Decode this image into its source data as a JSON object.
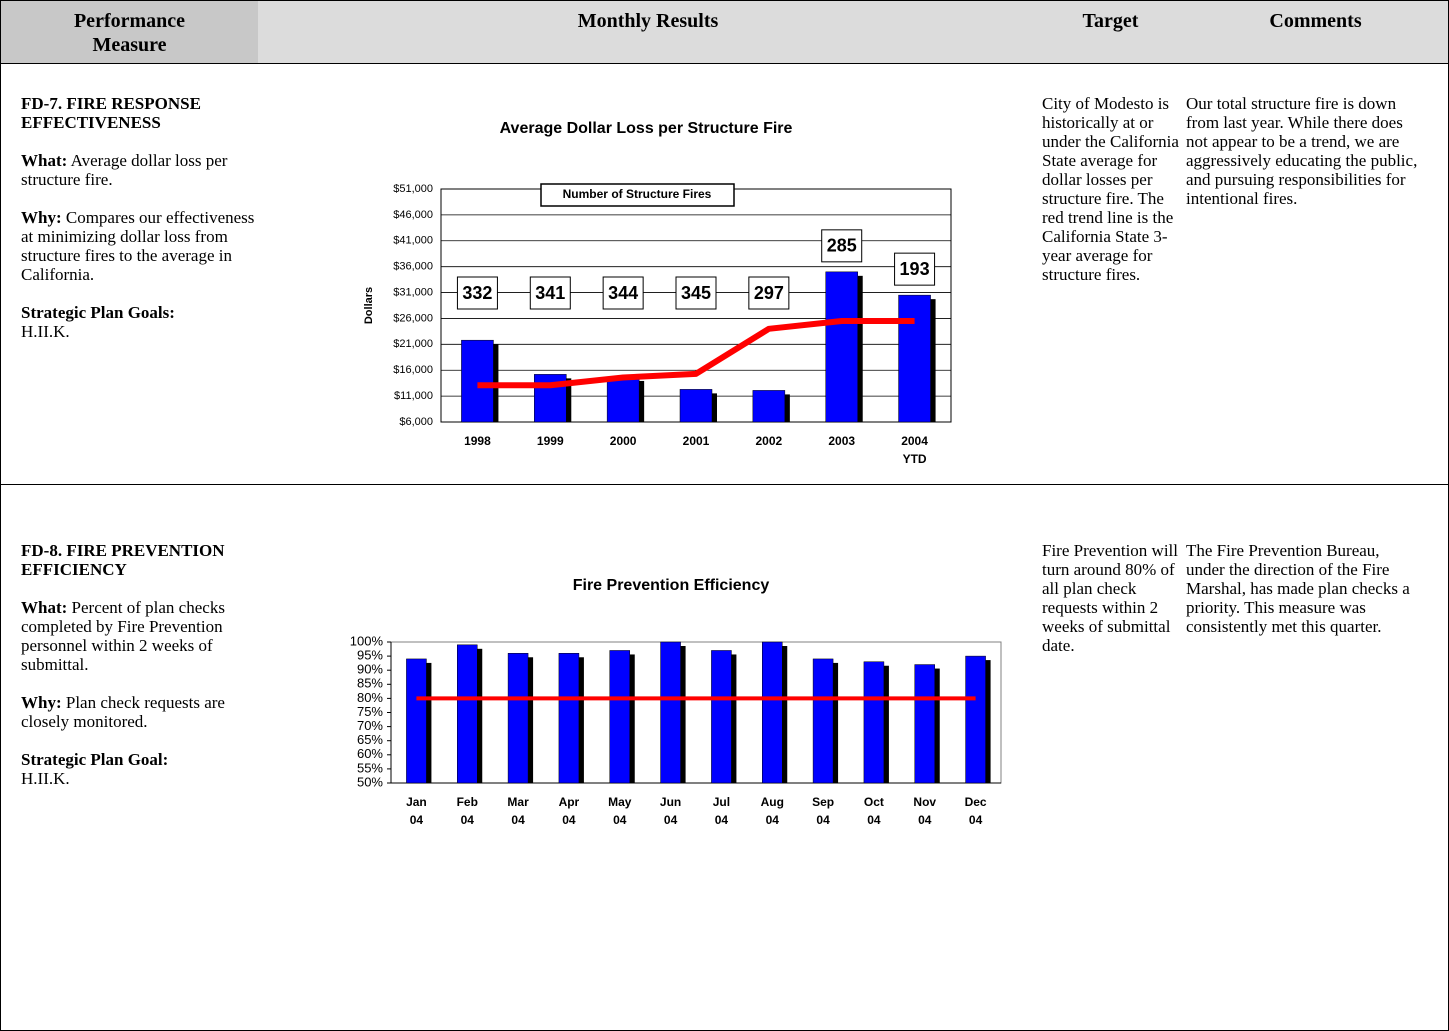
{
  "header": [
    "Performance Measure",
    "Monthly Results",
    "Target",
    "Comments"
  ],
  "rows": [
    {
      "measure": {
        "title": "FD-7. FIRE RESPONSE EFFECTIVENESS",
        "what_label": "What:",
        "what": "Average dollar loss per structure fire.",
        "why_label": "Why:",
        "why": "Compares our effectiveness at minimizing dollar loss from structure fires to the average in California.",
        "goals_label": "Strategic Plan Goals:",
        "goals": "H.II.K."
      },
      "chart": {
        "type": "bar",
        "title": "Average Dollar Loss per Structure Fire",
        "y_label": "Dollars",
        "categories": [
          "1998",
          "1999",
          "2000",
          "2001",
          "2002",
          "2003",
          "2004 YTD"
        ],
        "values": [
          21800,
          15200,
          14700,
          12300,
          12100,
          35000,
          30500
        ],
        "color": "#0000ff",
        "line": {
          "values": [
            13100,
            13100,
            14600,
            15300,
            24000,
            25500,
            25500
          ],
          "color": "#ff0000"
        },
        "fire_counts": {
          "name": "Number of Structure Fires",
          "values": [
            332,
            341,
            344,
            345,
            297,
            285,
            193
          ]
        },
        "ylim": [
          6000,
          51000
        ],
        "yticks": [
          {
            "value": 6000,
            "label": "$6,000"
          },
          {
            "value": 11000,
            "label": "$11,000"
          },
          {
            "value": 16000,
            "label": "$16,000"
          },
          {
            "value": 21000,
            "label": "$21,000"
          },
          {
            "value": 26000,
            "label": "$26,000"
          },
          {
            "value": 31000,
            "label": "$31,000"
          },
          {
            "value": 36000,
            "label": "$36,000"
          },
          {
            "value": 41000,
            "label": "$41,000"
          },
          {
            "value": 46000,
            "label": "$46,000"
          },
          {
            "value": 51000,
            "label": "$51,000"
          }
        ],
        "grid": true
      },
      "target": "City of Modesto is historically at or under the California State average for dollar losses per structure fire.  The red trend line is the California State 3-year average for structure fires.",
      "comments": "Our total structure fire is down from last year.  While there does not appear to be a trend, we are aggressively educating the public, and pursuing responsibilities for intentional fires."
    },
    {
      "measure": {
        "title": "FD-8. FIRE PREVENTION EFFICIENCY",
        "what_label": "What:",
        "what": "Percent of plan checks completed by Fire Prevention personnel within 2 weeks of submittal.",
        "why_label": "Why:",
        "why": "Plan check requests are closely monitored.",
        "goals_label": "Strategic Plan Goal:",
        "goals": "H.II.K."
      },
      "chart": {
        "type": "bar",
        "title": "Fire Prevention Efficiency",
        "categories": [
          "Jan 04",
          "Feb 04",
          "Mar 04",
          "Apr 04",
          "May 04",
          "Jun 04",
          "Jul 04",
          "Aug 04",
          "Sep 04",
          "Oct 04",
          "Nov 04",
          "Dec 04"
        ],
        "values": [
          94,
          99,
          96,
          96,
          97,
          100,
          97,
          100,
          94,
          93,
          92,
          95
        ],
        "color": "#0000ff",
        "target": 80,
        "target_color": "#ff0000",
        "ylim": [
          50,
          100
        ],
        "yticks": [
          {
            "value": 50,
            "label": "50%"
          },
          {
            "value": 55,
            "label": "55%"
          },
          {
            "value": 60,
            "label": "60%"
          },
          {
            "value": 65,
            "label": "65%"
          },
          {
            "value": 70,
            "label": "70%"
          },
          {
            "value": 75,
            "label": "75%"
          },
          {
            "value": 80,
            "label": "80%"
          },
          {
            "value": 85,
            "label": "85%"
          },
          {
            "value": 90,
            "label": "90%"
          },
          {
            "value": 95,
            "label": "95%"
          },
          {
            "value": 100,
            "label": "100%"
          }
        ],
        "grid": false
      },
      "target": "Fire Prevention will turn around 80% of all plan check requests within 2 weeks of submittal date.",
      "comments": "The Fire Prevention Bureau, under the direction of the Fire Marshal, has made plan checks a priority.  This measure was consistently met this quarter."
    }
  ]
}
